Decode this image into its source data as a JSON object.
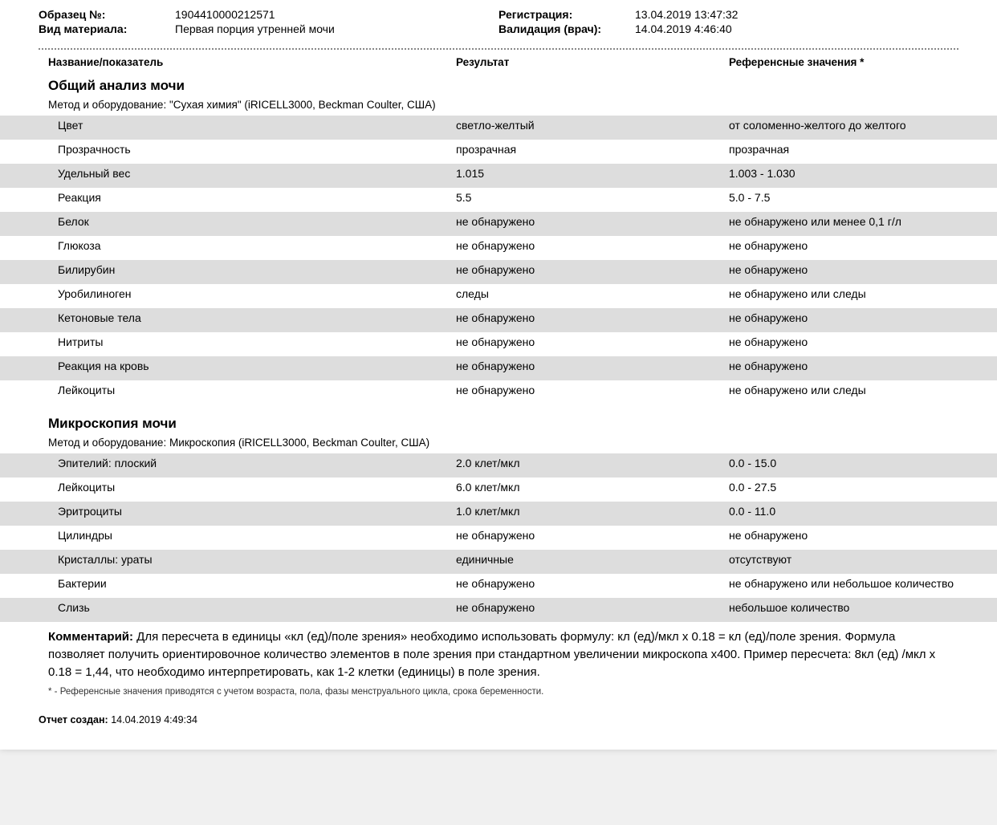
{
  "header": {
    "sample_label": "Образец №:",
    "sample_value": "1904410000212571",
    "material_label": "Вид материала:",
    "material_value": "Первая порция утренней мочи",
    "registration_label": "Регистрация:",
    "registration_value": "13.04.2019  13:47:32",
    "validation_label": "Валидация (врач):",
    "validation_value": "14.04.2019   4:46:40"
  },
  "columns": {
    "name": "Название/показатель",
    "result": "Результат",
    "reference": "Референсные значения *"
  },
  "section1": {
    "title": "Общий анализ мочи",
    "method": "Метод и оборудование:  \"Сухая химия\" (iRICELL3000, Beckman Coulter, США)",
    "rows": [
      {
        "name": "Цвет",
        "result": "светло-желтый",
        "ref": "от соломенно-желтого до желтого"
      },
      {
        "name": "Прозрачность",
        "result": "прозрачная",
        "ref": "прозрачная"
      },
      {
        "name": "Удельный вес",
        "result": "1.015",
        "ref": "1.003 - 1.030"
      },
      {
        "name": "Реакция",
        "result": "5.5",
        "ref": "5.0 - 7.5"
      },
      {
        "name": "Белок",
        "result": "не обнаружено",
        "ref": "не обнаружено или менее 0,1 г/л"
      },
      {
        "name": "Глюкоза",
        "result": "не обнаружено",
        "ref": "не обнаружено"
      },
      {
        "name": "Билирубин",
        "result": "не обнаружено",
        "ref": "не обнаружено"
      },
      {
        "name": "Уробилиноген",
        "result": "следы",
        "ref": "не обнаружено или следы"
      },
      {
        "name": "Кетоновые тела",
        "result": "не обнаружено",
        "ref": "не обнаружено"
      },
      {
        "name": "Нитриты",
        "result": "не обнаружено",
        "ref": "не обнаружено"
      },
      {
        "name": "Реакция на кровь",
        "result": "не обнаружено",
        "ref": "не обнаружено"
      },
      {
        "name": "Лейкоциты",
        "result": "не обнаружено",
        "ref": "не обнаружено или следы"
      }
    ]
  },
  "section2": {
    "title": "Микроскопия мочи",
    "method": "Метод и оборудование:  Микроскопия (iRICELL3000, Beckman Coulter, США)",
    "rows": [
      {
        "name": "Эпителий: плоский",
        "result": "2.0 клет/мкл",
        "ref": "0.0 - 15.0"
      },
      {
        "name": "Лейкоциты",
        "result": "6.0 клет/мкл",
        "ref": "0.0 - 27.5"
      },
      {
        "name": "Эритроциты",
        "result": "1.0 клет/мкл",
        "ref": "0.0 - 11.0"
      },
      {
        "name": "Цилиндры",
        "result": "не обнаружено",
        "ref": "не обнаружено"
      },
      {
        "name": "Кристаллы: ураты",
        "result": "единичные",
        "ref": "отсутствуют"
      },
      {
        "name": "Бактерии",
        "result": "не обнаружено",
        "ref": "не обнаружено или небольшое количество"
      },
      {
        "name": "Слизь",
        "result": "не обнаружено",
        "ref": "небольшое количество"
      }
    ]
  },
  "comment": {
    "label": "Комментарий:",
    "text": " Для пересчета в единицы «кл (ед)/поле зрения» необходимо использовать формулу: кл (ед)/мкл х 0.18 = кл (ед)/поле зрения. Формула позволяет получить ориентировочное количество элементов в поле зрения при стандартном увеличении микроскопа х400. Пример пересчета: 8кл (ед) /мкл х 0.18 = 1,44, что необходимо интерпретировать, как 1-2 клетки (единицы) в поле зрения."
  },
  "footnote": "* - Референсные значения приводятся с учетом возраста, пола, фазы менструального цикла, срока беременности.",
  "created": {
    "label": "Отчет создан:",
    "value": " 14.04.2019  4:49:34"
  },
  "style": {
    "shade_color": "#dddddd",
    "bg": "#ffffff",
    "font_size_body": 14,
    "font_size_title": 17,
    "shaded_rows_s1": [
      0,
      2,
      4,
      6,
      8,
      10
    ],
    "shaded_rows_s2": [
      0,
      2,
      4,
      6
    ]
  }
}
